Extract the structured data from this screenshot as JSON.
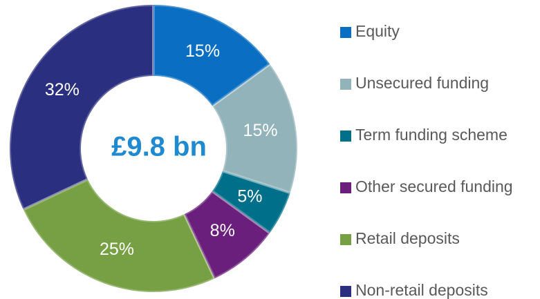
{
  "chart_data": {
    "type": "donut",
    "center_label": "£9.8 bn",
    "categories": [
      "Equity",
      "Unsecured funding",
      "Term funding scheme",
      "Other secured funding",
      "Retail deposits",
      "Non-retail deposits"
    ],
    "values": [
      15,
      15,
      5,
      8,
      25,
      32
    ],
    "value_labels": [
      "15%",
      "15%",
      "5%",
      "8%",
      "25%",
      "32%"
    ],
    "colors": [
      "#0a6fc2",
      "#93b3ba",
      "#00708a",
      "#6b1f7c",
      "#76a043",
      "#2b2f80"
    ],
    "legend": "right"
  }
}
